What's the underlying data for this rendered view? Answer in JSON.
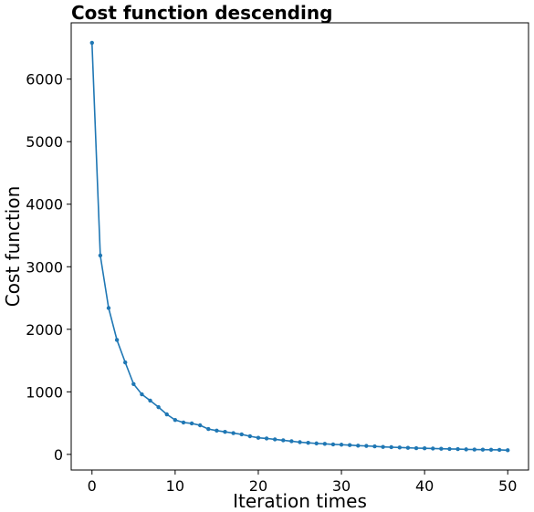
{
  "chart_data": {
    "type": "line",
    "title": "Cost function descending",
    "xlabel": "Iteration times",
    "ylabel": "Cost function",
    "xlim": [
      -2.5,
      52.5
    ],
    "ylim": [
      -250,
      6900
    ],
    "x_ticks": [
      0,
      10,
      20,
      30,
      40,
      50
    ],
    "y_ticks": [
      0,
      1000,
      2000,
      3000,
      4000,
      5000,
      6000
    ],
    "grid": false,
    "series": [
      {
        "color": "#1f77b4",
        "marker": "dot",
        "x": [
          0,
          1,
          2,
          3,
          4,
          5,
          6,
          7,
          8,
          9,
          10,
          11,
          12,
          13,
          14,
          15,
          16,
          17,
          18,
          19,
          20,
          21,
          22,
          23,
          24,
          25,
          26,
          27,
          28,
          29,
          30,
          31,
          32,
          33,
          34,
          35,
          36,
          37,
          38,
          39,
          40,
          41,
          42,
          43,
          44,
          45,
          46,
          47,
          48,
          49,
          50
        ],
        "values": [
          6580,
          3180,
          2340,
          1830,
          1470,
          1125,
          960,
          860,
          755,
          640,
          550,
          510,
          495,
          465,
          405,
          380,
          360,
          340,
          320,
          290,
          265,
          255,
          240,
          225,
          210,
          195,
          185,
          175,
          168,
          160,
          155,
          148,
          140,
          135,
          128,
          120,
          115,
          110,
          105,
          100,
          97,
          94,
          90,
          87,
          84,
          80,
          78,
          76,
          74,
          72,
          66
        ]
      }
    ]
  }
}
